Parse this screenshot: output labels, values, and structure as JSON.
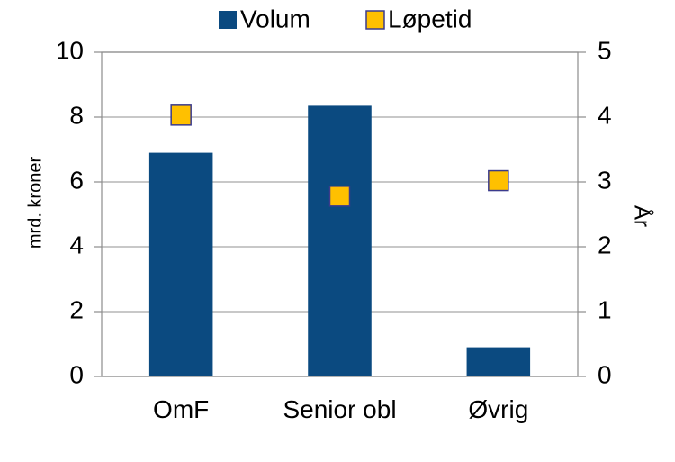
{
  "chart_data": {
    "type": "bar",
    "categories": [
      "OmF",
      "Senior obl",
      "Øvrig"
    ],
    "series": [
      {
        "name": "Volum",
        "color": "#0b4a80",
        "values": [
          6.9,
          8.35,
          0.9
        ]
      },
      {
        "name": "Løpetid",
        "color": "#ffc000",
        "type": "scatter",
        "axis": "y2",
        "values": [
          4.03,
          2.78,
          3.02
        ]
      }
    ],
    "ylabel": "mrd. kroner",
    "y2label": "År",
    "ylim": [
      0,
      10
    ],
    "yticks": [
      0,
      2,
      4,
      6,
      8,
      10
    ],
    "y2lim": [
      0,
      5
    ],
    "y2ticks": [
      0,
      1,
      2,
      3,
      4,
      5
    ],
    "grid": true,
    "legend": "top"
  }
}
